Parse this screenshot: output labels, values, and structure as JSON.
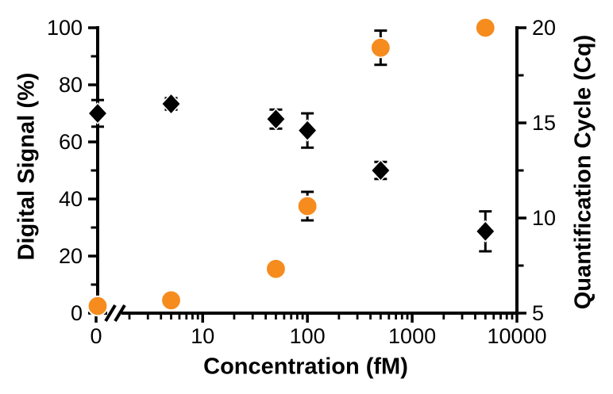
{
  "chart_data": {
    "type": "scatter",
    "title": "",
    "xlabel": "Concentration (fM)",
    "x_axis": {
      "scale": "log",
      "has_break_after_zero": true,
      "major_ticks": [
        0,
        10,
        100,
        1000,
        10000
      ],
      "tick_labels": [
        "0",
        "10",
        "100",
        "1000",
        "10000"
      ],
      "minor_ticks": "2-9 per decade"
    },
    "axes": {
      "left": {
        "label": "Digital Signal (%)",
        "min": 0,
        "max": 100,
        "major_ticks": [
          0,
          20,
          40,
          60,
          80,
          100
        ],
        "tick_labels": [
          "0",
          "20",
          "40",
          "60",
          "80",
          "100"
        ],
        "minor_ticks": [
          10,
          30,
          50,
          70,
          90
        ]
      },
      "right": {
        "label": "Quantification Cycle (Cq)",
        "min": 5,
        "max": 20,
        "major_ticks": [
          5,
          10,
          15,
          20
        ],
        "tick_labels": [
          "5",
          "10",
          "15",
          "20"
        ],
        "minor_ticks": [
          7.5,
          12.5,
          17.5
        ]
      }
    },
    "series": [
      {
        "name": "Digital Signal (%)",
        "axis": "left",
        "marker": "circle",
        "color": "#F68C1E",
        "points": [
          {
            "x": 0,
            "y": 2.5,
            "err": 0
          },
          {
            "x": 5,
            "y": 4.5,
            "err": 0
          },
          {
            "x": 50,
            "y": 15.5,
            "err": 2.5
          },
          {
            "x": 100,
            "y": 37.5,
            "err": 5
          },
          {
            "x": 500,
            "y": 93,
            "err": 6
          },
          {
            "x": 5000,
            "y": 100,
            "err": 0
          }
        ]
      },
      {
        "name": "Quantification Cycle (Cq)",
        "axis": "right",
        "marker": "diamond",
        "color": "#000000",
        "points": [
          {
            "x": 0,
            "y": 15.5,
            "err": 0.7
          },
          {
            "x": 5,
            "y": 16.0,
            "err": 0.3
          },
          {
            "x": 50,
            "y": 15.2,
            "err": 0.5
          },
          {
            "x": 100,
            "y": 14.6,
            "err": 0.9
          },
          {
            "x": 500,
            "y": 12.5,
            "err": 0.45
          },
          {
            "x": 5000,
            "y": 9.3,
            "err": 1.05
          }
        ]
      }
    ],
    "legend": "none",
    "grid": false,
    "axis_color": "#000000",
    "background": "#FFFFFF"
  }
}
